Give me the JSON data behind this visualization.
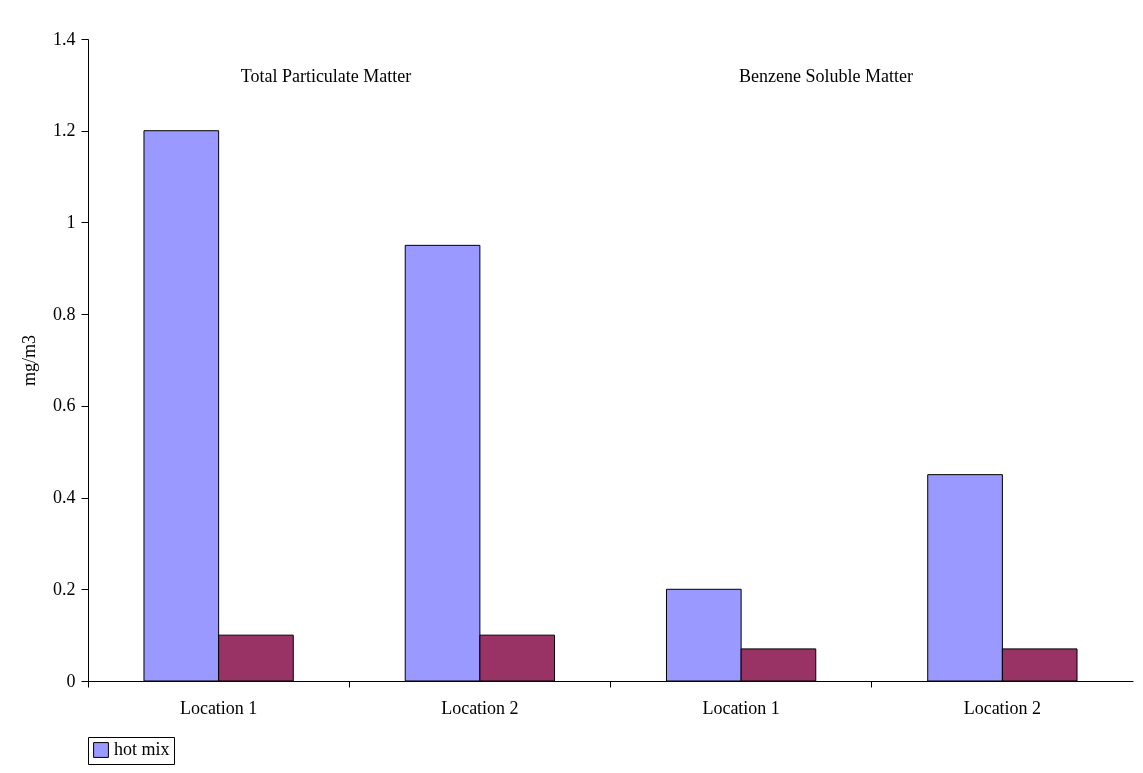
{
  "chart_data": {
    "type": "bar",
    "ylabel": "mg/m3",
    "categories": [
      "Location 1",
      "Location 2",
      "Location 1",
      "Location 2"
    ],
    "series": [
      {
        "name": "hot mix",
        "color": "#9999ff",
        "values": [
          1.2,
          0.95,
          0.2,
          0.45
        ]
      },
      {
        "color": "#993366",
        "values": [
          0.1,
          0.1,
          0.07,
          0.07
        ]
      }
    ],
    "ylim": [
      0,
      1.4
    ],
    "yticks": [
      0,
      0.2,
      0.4,
      0.6,
      0.8,
      1,
      1.2,
      1.4
    ],
    "annotations": [
      "Total Particulate Matter",
      "Benzene Soluble Matter"
    ],
    "grid": false,
    "legend": "bottom"
  }
}
